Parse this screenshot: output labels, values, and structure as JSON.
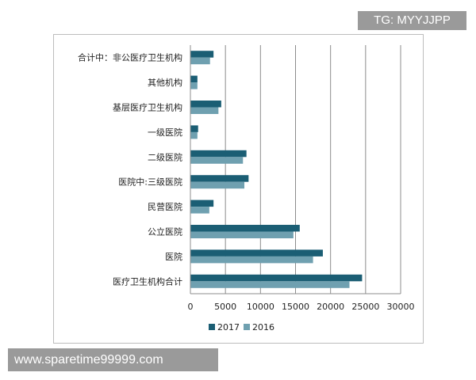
{
  "watermarks": {
    "top": "TG: MYYJJPP",
    "bottom": "www.sparetime99999.com"
  },
  "chart_data": {
    "type": "bar",
    "orientation": "horizontal",
    "title": "",
    "xlabel": "",
    "ylabel": "",
    "xlim": [
      0,
      30000
    ],
    "xticks": [
      0,
      5000,
      10000,
      15000,
      20000,
      25000,
      30000
    ],
    "grid": "vertical",
    "legend_position": "bottom",
    "categories": [
      "合计中：非公医疗卫生机构",
      "其他机构",
      "基层医疗卫生机构",
      "一级医院",
      "二级医院",
      "医院中:三级医院",
      "民营医院",
      "公立医院",
      "医院",
      "医疗卫生机构合计"
    ],
    "series": [
      {
        "name": "2017",
        "color": "#1b5e74",
        "values": [
          3300,
          1000,
          4400,
          1100,
          8000,
          8300,
          3300,
          15600,
          18900,
          24500
        ]
      },
      {
        "name": "2016",
        "color": "#6fa0b0",
        "values": [
          2800,
          1000,
          4000,
          1000,
          7500,
          7700,
          2700,
          14700,
          17500,
          22700
        ]
      }
    ]
  }
}
